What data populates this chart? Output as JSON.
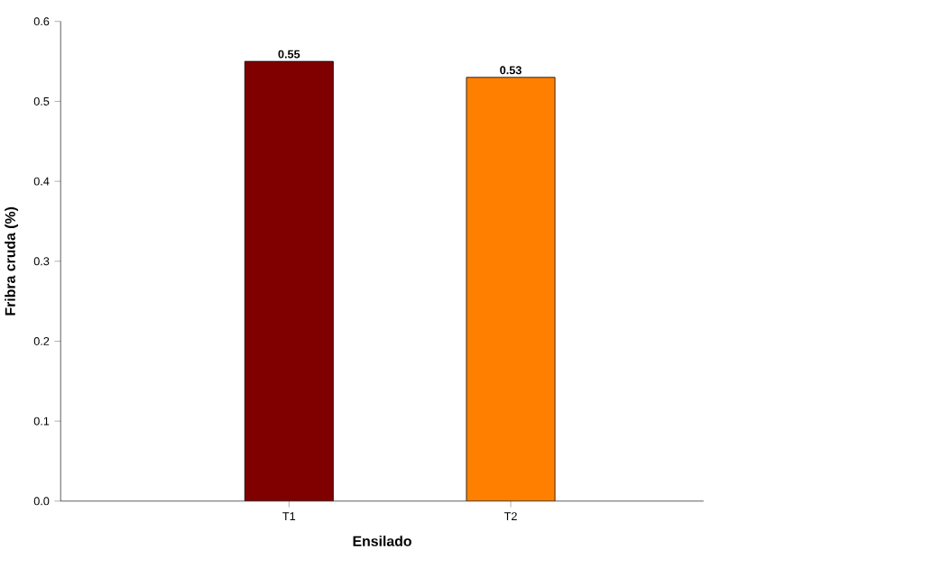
{
  "chart_data": {
    "type": "bar",
    "xlabel": "Ensilado",
    "ylabel": "Fribra cruda  (%)",
    "categories": [
      "T1",
      "T2"
    ],
    "values": [
      0.55,
      0.53
    ],
    "colors": [
      "#800000",
      "#ff8000"
    ],
    "data_labels": true,
    "ylim": [
      0,
      0.6
    ],
    "yticks": [
      {
        "value": 0,
        "label": "0.0"
      },
      0.1,
      0.2,
      0.3,
      0.4,
      0.5,
      0.6
    ],
    "grid": false
  }
}
